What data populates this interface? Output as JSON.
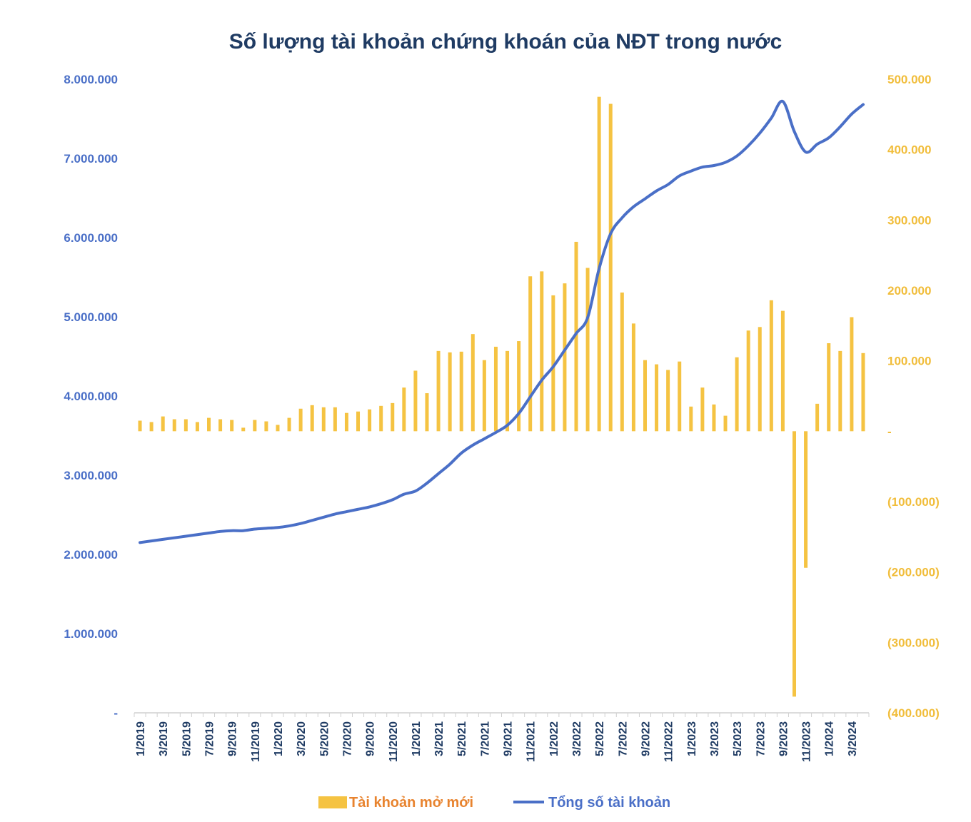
{
  "chart_data": {
    "type": "bar+line",
    "title": "Số lượng tài khoản chứng khoán của NĐT trong nước",
    "colors": {
      "bars": "#f5c342",
      "line": "#4a6fc7",
      "left_axis": "#4a6fc7",
      "right_axis": "#f1bd3a",
      "title": "#1f3b63"
    },
    "x_labels": [
      "1/2019",
      "3/2019",
      "5/2019",
      "7/2019",
      "9/2019",
      "11/2019",
      "1/2020",
      "3/2020",
      "5/2020",
      "7/2020",
      "9/2020",
      "11/2020",
      "1/2021",
      "3/2021",
      "5/2021",
      "7/2021",
      "9/2021",
      "11/2021",
      "1/2022",
      "3/2022",
      "5/2022",
      "7/2022",
      "9/2022",
      "11/2022",
      "1/2023",
      "3/2023",
      "5/2023",
      "7/2023",
      "9/2023",
      "11/2023",
      "1/2024",
      "3/2024"
    ],
    "y_left": {
      "range": [
        0,
        8000000
      ],
      "ticks": [
        "-",
        "1.000.000",
        "2.000.000",
        "3.000.000",
        "4.000.000",
        "5.000.000",
        "6.000.000",
        "7.000.000",
        "8.000.000"
      ]
    },
    "y_right": {
      "range": [
        -400000,
        500000
      ],
      "ticks": [
        "(400.000)",
        "(300.000)",
        "(200.000)",
        "(100.000)",
        "-",
        "100.000",
        "200.000",
        "300.000",
        "400.000",
        "500.000"
      ]
    },
    "series": [
      {
        "name": "Tài khoản mở mới",
        "type": "bar",
        "axis": "right",
        "values": [
          15000,
          13000,
          21000,
          17000,
          17000,
          13000,
          19000,
          17000,
          16000,
          5000,
          16000,
          14000,
          9000,
          19000,
          32000,
          37000,
          34000,
          34000,
          26000,
          28000,
          31000,
          36000,
          40000,
          62000,
          86000,
          54000,
          114000,
          112000,
          113000,
          138000,
          101000,
          120000,
          114000,
          128000,
          220000,
          227000,
          193000,
          210000,
          269000,
          232000,
          475000,
          465000,
          197000,
          153000,
          101000,
          95000,
          87000,
          99000,
          35000,
          62000,
          38000,
          22000,
          105000,
          143000,
          148000,
          186000,
          171000,
          -377000,
          -194000,
          39000,
          125000,
          114000,
          162000,
          111000
        ]
      },
      {
        "name": "Tổng số tài khoản",
        "type": "line",
        "axis": "left",
        "values": [
          2150000,
          2170000,
          2190000,
          2210000,
          2230000,
          2250000,
          2270000,
          2290000,
          2300000,
          2300000,
          2320000,
          2330000,
          2340000,
          2360000,
          2390000,
          2430000,
          2470000,
          2510000,
          2540000,
          2570000,
          2600000,
          2640000,
          2690000,
          2760000,
          2800000,
          2900000,
          3020000,
          3140000,
          3280000,
          3380000,
          3460000,
          3540000,
          3630000,
          3780000,
          3990000,
          4200000,
          4370000,
          4580000,
          4790000,
          4990000,
          5610000,
          6050000,
          6250000,
          6390000,
          6490000,
          6590000,
          6670000,
          6780000,
          6840000,
          6890000,
          6910000,
          6950000,
          7030000,
          7160000,
          7320000,
          7510000,
          7720000,
          7340000,
          7080000,
          7180000,
          7260000,
          7400000,
          7560000,
          7680000
        ]
      }
    ],
    "legend": {
      "position": "bottom",
      "bar_label": "Tài khoản mở mới",
      "line_label": "Tổng số tài khoản"
    }
  }
}
